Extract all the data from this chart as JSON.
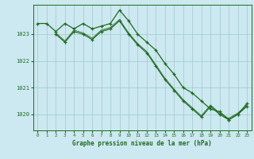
{
  "title": "Graphe pression niveau de la mer (hPa)",
  "background_color": "#cce8f0",
  "grid_color": "#a0c8cc",
  "line_color": "#1e6b1e",
  "xlim": [
    -0.5,
    23.5
  ],
  "ylim": [
    1019.4,
    1024.1
  ],
  "yticks": [
    1020,
    1021,
    1022,
    1023
  ],
  "xticks": [
    0,
    1,
    2,
    3,
    4,
    5,
    6,
    7,
    8,
    9,
    10,
    11,
    12,
    13,
    14,
    15,
    16,
    17,
    18,
    19,
    20,
    21,
    22,
    23
  ],
  "series1_x": [
    0,
    1,
    2,
    3,
    4,
    5,
    6,
    7,
    8,
    9,
    10,
    11,
    12,
    13,
    14,
    15,
    16,
    17,
    18,
    19,
    20,
    21,
    22,
    23
  ],
  "series1_y": [
    1023.4,
    1023.4,
    1023.1,
    1023.4,
    1023.2,
    1023.4,
    1023.2,
    1023.3,
    1023.4,
    1023.9,
    1023.5,
    1023.0,
    1022.7,
    1022.4,
    1021.9,
    1021.5,
    1021.0,
    1020.8,
    1020.5,
    1020.2,
    1020.1,
    1019.8,
    1020.0,
    1020.4
  ],
  "series2_x": [
    2,
    3,
    4,
    5,
    6,
    7,
    8,
    9,
    10,
    11,
    12,
    13,
    14,
    15,
    16,
    17,
    18,
    19,
    20,
    21,
    22,
    23
  ],
  "series2_y": [
    1023.0,
    1022.7,
    1023.1,
    1023.0,
    1022.8,
    1023.1,
    1023.2,
    1023.5,
    1023.0,
    1022.6,
    1022.3,
    1021.8,
    1021.3,
    1020.9,
    1020.5,
    1020.2,
    1019.9,
    1020.3,
    1020.0,
    1019.8,
    1020.0,
    1020.3
  ],
  "series3_x": [
    2,
    3,
    4,
    5,
    6,
    7,
    8,
    9,
    10,
    11,
    12,
    13,
    14,
    15,
    16,
    17,
    18,
    19,
    20,
    21,
    22,
    23
  ],
  "series3_y": [
    1023.05,
    1022.75,
    1023.15,
    1023.05,
    1022.85,
    1023.15,
    1023.25,
    1023.55,
    1023.05,
    1022.65,
    1022.35,
    1021.85,
    1021.35,
    1020.95,
    1020.55,
    1020.25,
    1019.95,
    1020.35,
    1020.05,
    1019.85,
    1020.05,
    1020.35
  ]
}
